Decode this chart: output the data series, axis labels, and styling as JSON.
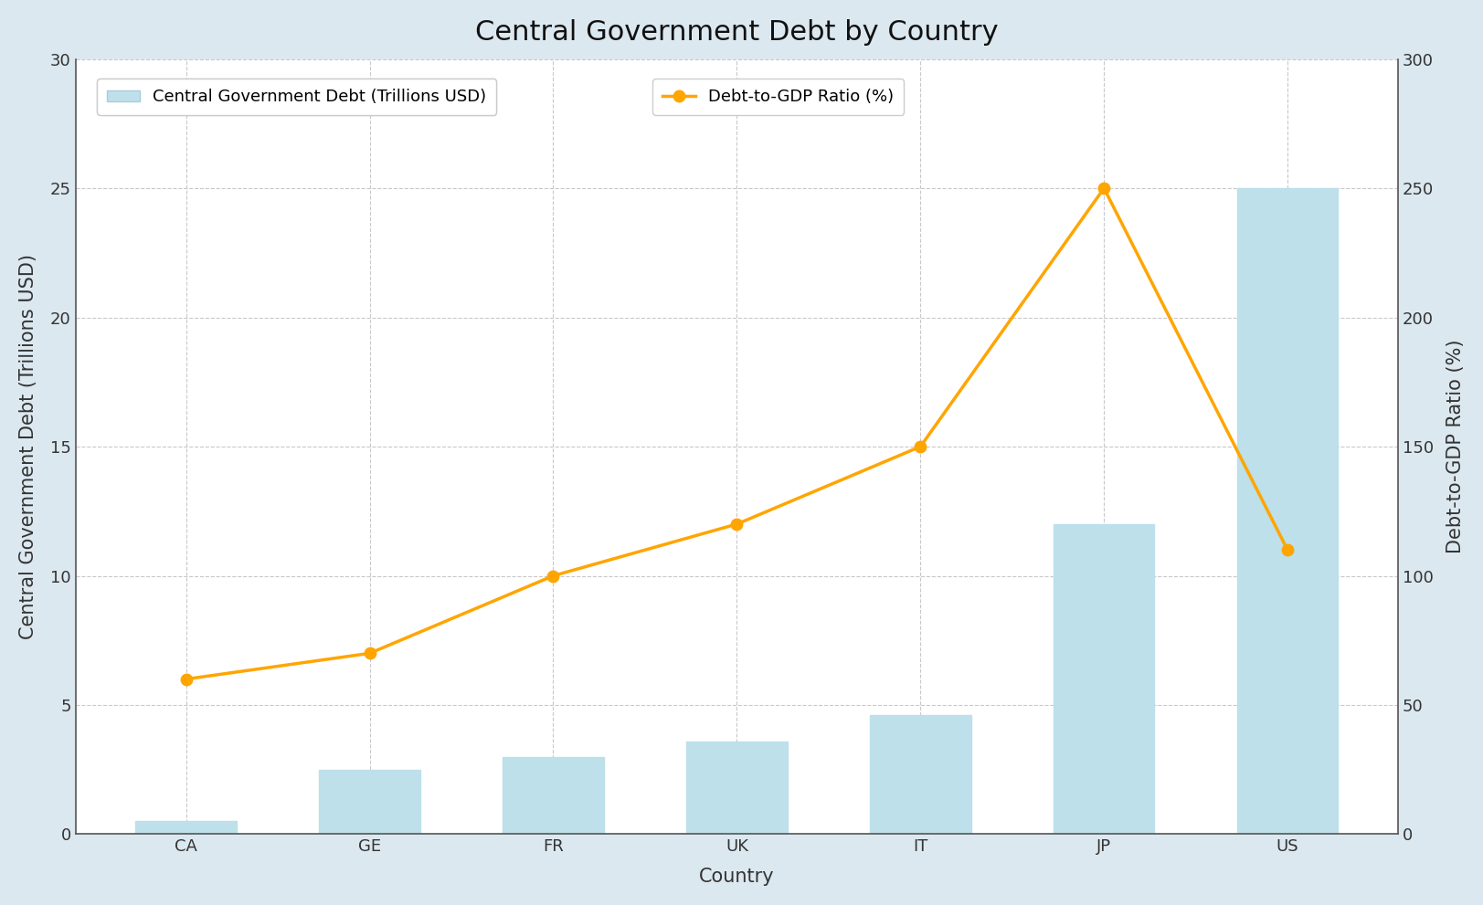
{
  "countries": [
    "CA",
    "GE",
    "FR",
    "UK",
    "IT",
    "JP",
    "US"
  ],
  "debt_trillions": [
    0.5,
    2.5,
    3.0,
    3.6,
    4.6,
    12.0,
    25.0
  ],
  "debt_to_gdp": [
    60,
    70,
    100,
    120,
    150,
    250,
    110
  ],
  "bar_color": "#bde0ea",
  "bar_edgecolor": "#bde0ea",
  "line_color": "#FFA500",
  "marker_color": "#FFA500",
  "marker_style": "o",
  "title": "Central Government Debt by Country",
  "xlabel": "Country",
  "ylabel_left": "Central Government Debt (Trillions USD)",
  "ylabel_right": "Debt-to-GDP Ratio (%)",
  "ylim_left": [
    0,
    30
  ],
  "ylim_right": [
    0,
    300
  ],
  "yticks_left": [
    0,
    5,
    10,
    15,
    20,
    25,
    30
  ],
  "yticks_right": [
    0,
    50,
    100,
    150,
    200,
    250,
    300
  ],
  "legend_bar_label": "Central Government Debt (Trillions USD)",
  "legend_line_label": "Debt-to-GDP Ratio (%)",
  "figure_background_color": "#dce8f0",
  "plot_background_color": "#ffffff",
  "title_fontsize": 22,
  "label_fontsize": 15,
  "tick_fontsize": 13,
  "legend_fontsize": 13,
  "grid_color": "#bbbbbb",
  "grid_linestyle": "--",
  "grid_alpha": 0.8,
  "line_width": 2.5,
  "marker_size": 9,
  "bar_width": 0.55
}
